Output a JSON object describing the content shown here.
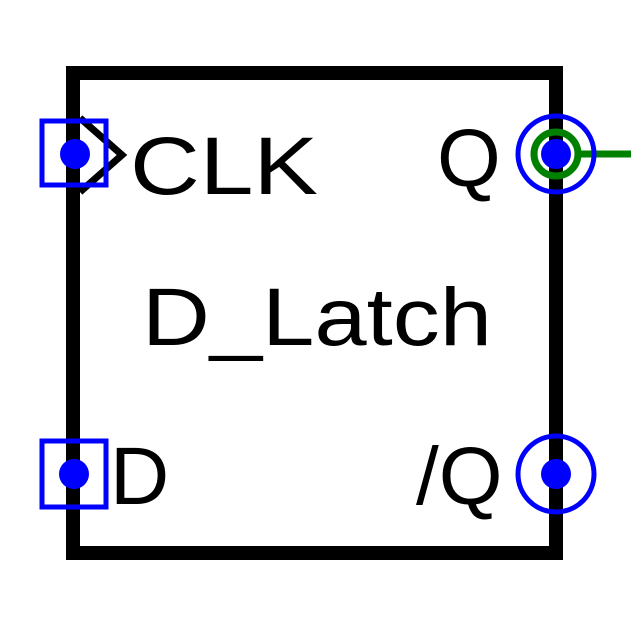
{
  "component": {
    "name": "D_Latch"
  },
  "pins": {
    "clk": {
      "label": "CLK",
      "side": "left",
      "type": "clock-input"
    },
    "d": {
      "label": "D",
      "side": "left",
      "type": "input"
    },
    "q": {
      "label": "Q",
      "side": "right",
      "type": "output",
      "connected": true
    },
    "qn": {
      "label": "/Q",
      "side": "right",
      "type": "output",
      "connected": false
    }
  },
  "colors": {
    "body_outline": "#000000",
    "pin_marker": "#0000ff",
    "wire": "#008000",
    "background": "#ffffff"
  }
}
